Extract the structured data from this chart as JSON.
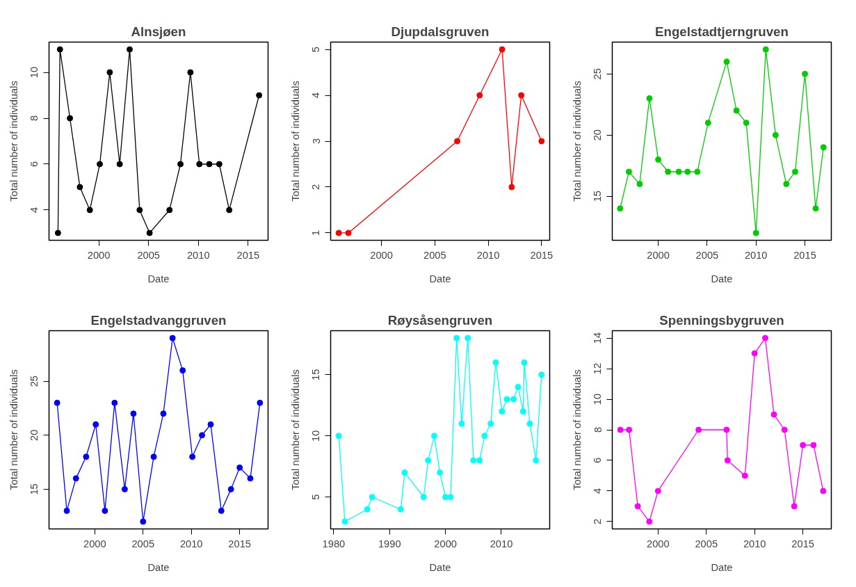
{
  "chart_data": [
    {
      "type": "line",
      "title": "Alnsjøen",
      "xlabel": "Date",
      "ylabel": "Total number of individuals",
      "color": "#000000",
      "marker": "circle",
      "grid": false,
      "x": [
        1995.9,
        1996.1,
        1997.1,
        1998.1,
        1999.1,
        2000.1,
        2001.1,
        2002.1,
        2003.1,
        2004.1,
        2005.1,
        2007.1,
        2008.2,
        2009.2,
        2010.1,
        2011.1,
        2012.1,
        2013.1,
        2016.1
      ],
      "values": [
        3,
        11,
        8,
        5,
        4,
        6,
        10,
        6,
        11,
        4,
        3,
        4,
        6,
        10,
        6,
        6,
        6,
        4,
        9
      ],
      "xlim": [
        1995.0,
        2017.0
      ],
      "xticks": [
        2000,
        2005,
        2010,
        2015
      ],
      "ylim": [
        2.68,
        11.32
      ],
      "yticks": [
        4,
        6,
        8,
        10
      ]
    },
    {
      "type": "line",
      "title": "Djupdalsgruven",
      "xlabel": "Date",
      "ylabel": "Total number of individuals",
      "color": "#ff0000",
      "marker": "circle",
      "grid": false,
      "x": [
        1996.0,
        1996.9,
        2007.1,
        2009.2,
        2011.3,
        2012.2,
        2013.1,
        2015.0
      ],
      "values": [
        1,
        1,
        3,
        4,
        5,
        2,
        4,
        3
      ],
      "xlim": [
        1995.24,
        2015.76
      ],
      "xticks": [
        2000,
        2005,
        2010,
        2015
      ],
      "ylim": [
        0.84,
        5.16
      ],
      "yticks": [
        1,
        2,
        3,
        4,
        5
      ]
    },
    {
      "type": "line",
      "title": "Engelstadtjerngruven",
      "xlabel": "Date",
      "ylabel": "Total number of individuals",
      "color": "#00cd00",
      "marker": "circle",
      "grid": false,
      "x": [
        1996.1,
        1997.0,
        1998.1,
        1999.1,
        2000.0,
        2001.0,
        2002.1,
        2003.0,
        2004.0,
        2005.1,
        2007.0,
        2008.0,
        2009.0,
        2010.0,
        2011.0,
        2012.0,
        2013.1,
        2014.0,
        2015.0,
        2016.1,
        2016.9
      ],
      "values": [
        14,
        17,
        16,
        23,
        18,
        17,
        17,
        17,
        17,
        21,
        26,
        22,
        21,
        12,
        27,
        20,
        16,
        17,
        25,
        14,
        19
      ],
      "xlim": [
        1995.3,
        2017.7
      ],
      "xticks": [
        2000,
        2005,
        2010,
        2015
      ],
      "ylim": [
        11.4,
        27.6
      ],
      "yticks": [
        15,
        20,
        25
      ]
    },
    {
      "type": "line",
      "title": "Engelstadvanggruven",
      "xlabel": "Date",
      "ylabel": "Total number of individuals",
      "color": "#0000ff",
      "marker": "circle",
      "grid": false,
      "x": [
        1996.1,
        1997.1,
        1998.05,
        1999.1,
        2000.1,
        2001.05,
        2002.05,
        2003.1,
        2004.0,
        2005.0,
        2006.1,
        2007.1,
        2008.05,
        2009.1,
        2010.1,
        2011.1,
        2012.0,
        2013.1,
        2014.1,
        2015.0,
        2016.1,
        2017.1
      ],
      "values": [
        23,
        13,
        16,
        18,
        21,
        13,
        23,
        15,
        22,
        12,
        18,
        22,
        29,
        26,
        18,
        20,
        21,
        13,
        15,
        17,
        16,
        23
      ],
      "xlim": [
        1995.26,
        2017.94
      ],
      "xticks": [
        2000,
        2005,
        2010,
        2015
      ],
      "ylim": [
        11.32,
        29.68
      ],
      "yticks": [
        15,
        20,
        25
      ]
    },
    {
      "type": "line",
      "title": "Røysåsengruven",
      "xlabel": "Date",
      "ylabel": "Total number of individuals",
      "color": "#00ffff",
      "marker": "circle",
      "grid": false,
      "x": [
        1980.9,
        1982.0,
        1986.0,
        1986.9,
        1992.0,
        1992.7,
        1996.1,
        1996.9,
        1998.0,
        1999.0,
        2000.0,
        2000.9,
        2002.0,
        2002.9,
        2004.0,
        2005.0,
        2006.1,
        2007.0,
        2008.1,
        2009.0,
        2010.1,
        2011.0,
        2012.2,
        2013.0,
        2013.9,
        2014.1,
        2015.1,
        2016.2,
        2017.2
      ],
      "values": [
        10,
        3,
        4,
        5,
        4,
        7,
        5,
        8,
        10,
        7,
        5,
        5,
        18,
        11,
        18,
        8,
        8,
        10,
        11,
        16,
        12,
        13,
        13,
        14,
        12,
        16,
        11,
        8,
        15
      ],
      "xlim": [
        1979.45,
        2018.65
      ],
      "xticks": [
        1980,
        1990,
        2000,
        2010
      ],
      "ylim": [
        2.4,
        18.6
      ],
      "yticks": [
        5,
        10,
        15
      ]
    },
    {
      "type": "line",
      "title": "Spenningsbygruven",
      "xlabel": "Date",
      "ylabel": "Total number of individuals",
      "color": "#ff00ff",
      "marker": "circle",
      "grid": false,
      "x": [
        1996.1,
        1997.0,
        1997.9,
        1999.1,
        2000.0,
        2004.2,
        2007.1,
        2007.2,
        2009.0,
        2010.0,
        2011.1,
        2012.0,
        2013.1,
        2014.1,
        2015.0,
        2016.1,
        2017.1
      ],
      "values": [
        8,
        8,
        3,
        2,
        4,
        8,
        8,
        6,
        5,
        13,
        14,
        9,
        8,
        3,
        7,
        7,
        4
      ],
      "xlim": [
        1995.26,
        2017.94
      ],
      "xticks": [
        2000,
        2005,
        2010,
        2015
      ],
      "ylim": [
        1.52,
        14.48
      ],
      "yticks": [
        2,
        4,
        6,
        8,
        10,
        12,
        14
      ]
    }
  ]
}
